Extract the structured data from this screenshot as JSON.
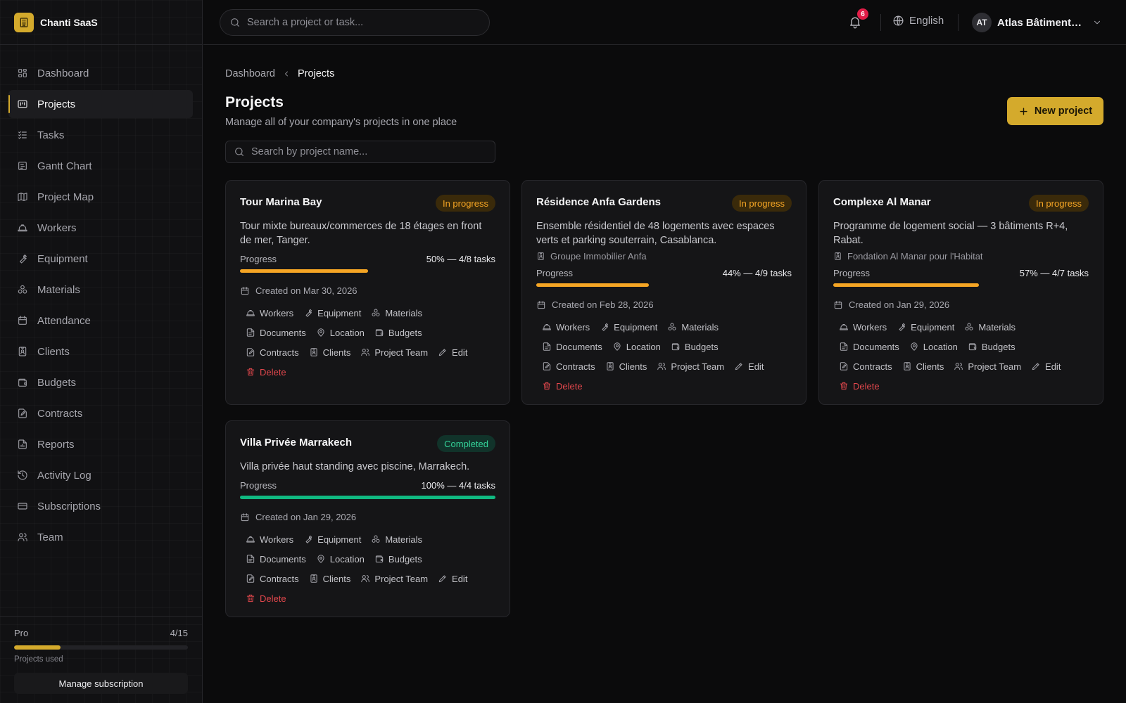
{
  "app": {
    "name": "Chanti SaaS"
  },
  "sidebar": {
    "items": [
      {
        "label": "Dashboard",
        "icon": "dashboard-icon",
        "active": false
      },
      {
        "label": "Projects",
        "icon": "projects-icon",
        "active": true
      },
      {
        "label": "Tasks",
        "icon": "tasks-icon",
        "active": false
      },
      {
        "label": "Gantt Chart",
        "icon": "gantt-icon",
        "active": false
      },
      {
        "label": "Project Map",
        "icon": "map-icon",
        "active": false
      },
      {
        "label": "Workers",
        "icon": "hardhat-icon",
        "active": false
      },
      {
        "label": "Equipment",
        "icon": "wrench-icon",
        "active": false
      },
      {
        "label": "Materials",
        "icon": "materials-icon",
        "active": false
      },
      {
        "label": "Attendance",
        "icon": "calendar-icon",
        "active": false
      },
      {
        "label": "Clients",
        "icon": "contact-icon",
        "active": false
      },
      {
        "label": "Budgets",
        "icon": "wallet-icon",
        "active": false
      },
      {
        "label": "Contracts",
        "icon": "contract-icon",
        "active": false
      },
      {
        "label": "Reports",
        "icon": "report-icon",
        "active": false
      },
      {
        "label": "Activity Log",
        "icon": "history-icon",
        "active": false
      },
      {
        "label": "Subscriptions",
        "icon": "credit-card-icon",
        "active": false
      },
      {
        "label": "Team",
        "icon": "users-icon",
        "active": false
      }
    ],
    "plan": {
      "name": "Pro",
      "usage": "4/15",
      "used_fraction": 0.267,
      "caption": "Projects used",
      "manage_label": "Manage subscription"
    }
  },
  "topbar": {
    "search_placeholder": "Search a project or task...",
    "notifications_count": "6",
    "language": "English",
    "account_initials": "AT",
    "account_name": "Atlas Bâtiment S..."
  },
  "page": {
    "breadcrumb": [
      "Dashboard",
      "Projects"
    ],
    "title": "Projects",
    "subtitle": "Manage all of your company's projects in one place",
    "new_button": "New project",
    "search_placeholder": "Search by project name..."
  },
  "progress_label": "Progress",
  "link_labels": [
    "Workers",
    "Equipment",
    "Materials",
    "Documents",
    "Location",
    "Budgets",
    "Contracts",
    "Clients",
    "Project Team",
    "Edit",
    "Delete"
  ],
  "colors": {
    "accent": "#d4aa2c",
    "in_progress": "#f5a524",
    "completed": "#10b981",
    "danger": "#e5484d"
  },
  "projects": [
    {
      "title": "Tour Marina Bay",
      "status": "In progress",
      "status_key": "inprogress",
      "description": "Tour mixte bureaux/commerces de 18 étages en front de mer, Tanger.",
      "client": "",
      "progress": 0.5,
      "progress_text": "50% — 4/8 tasks",
      "created": "Created on Mar 30, 2026"
    },
    {
      "title": "Résidence Anfa Gardens",
      "status": "In progress",
      "status_key": "inprogress",
      "description": "Ensemble résidentiel de 48 logements avec espaces verts et parking souterrain, Casablanca.",
      "client": "Groupe Immobilier Anfa",
      "progress": 0.44,
      "progress_text": "44% — 4/9 tasks",
      "created": "Created on Feb 28, 2026"
    },
    {
      "title": "Complexe Al Manar",
      "status": "In progress",
      "status_key": "inprogress",
      "description": "Programme de logement social — 3 bâtiments R+4, Rabat.",
      "client": "Fondation Al Manar pour l'Habitat",
      "progress": 0.57,
      "progress_text": "57% — 4/7 tasks",
      "created": "Created on Jan 29, 2026"
    },
    {
      "title": "Villa Privée Marrakech",
      "status": "Completed",
      "status_key": "completed",
      "description": "Villa privée haut standing avec piscine, Marrakech.",
      "client": "",
      "progress": 1.0,
      "progress_text": "100% — 4/4 tasks",
      "created": "Created on Jan 29, 2026"
    }
  ]
}
